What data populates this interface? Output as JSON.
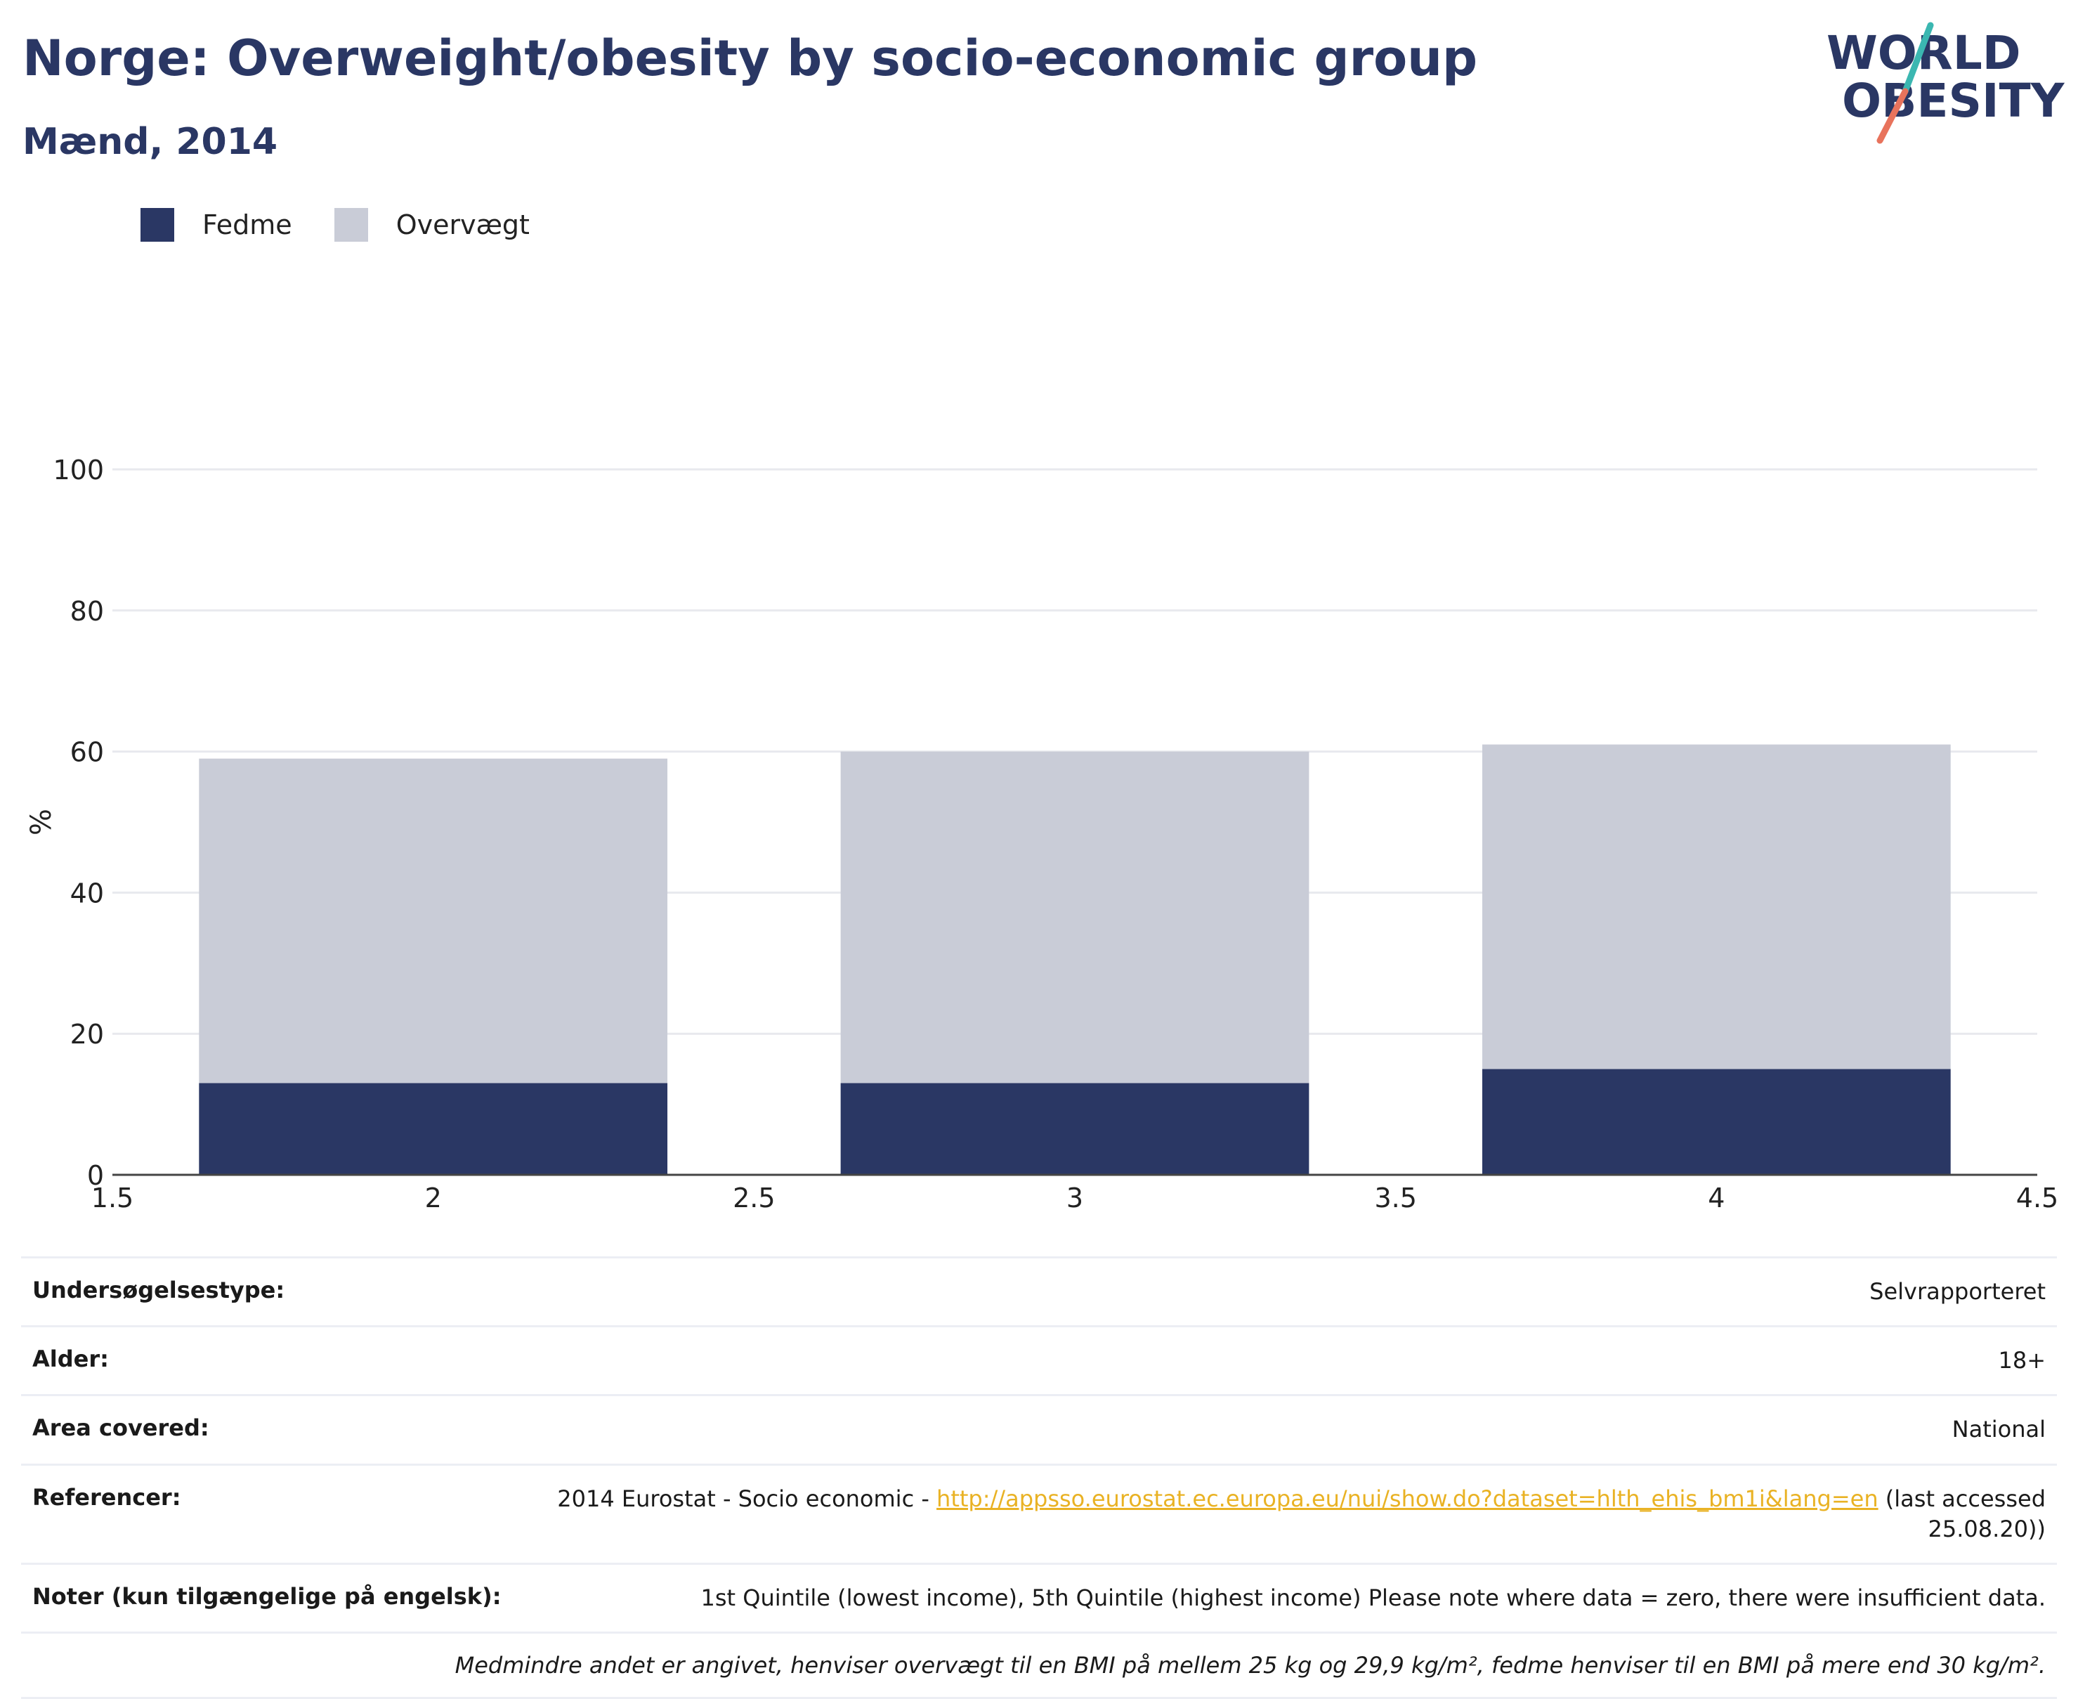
{
  "header": {
    "title": "Norge: Overweight/obesity by socio-economic group",
    "subtitle": "Mænd, 2014",
    "logo_line1": "WORLD",
    "logo_line2": "OBESITY"
  },
  "colors": {
    "obesity": "#2a3764",
    "overweight": "#c9ccd7",
    "title": "#2a3764",
    "link": "#e9b224",
    "logo_teal": "#3bb7b1",
    "logo_coral": "#e8735c"
  },
  "chart_data": {
    "type": "bar",
    "stacked": true,
    "x": [
      2,
      3,
      4
    ],
    "series": [
      {
        "name": "Fedme",
        "values": [
          13,
          13,
          15
        ]
      },
      {
        "name": "Overvægt",
        "values": [
          46,
          47,
          46
        ]
      }
    ],
    "totals": [
      59,
      60,
      61
    ],
    "ylabel": "%",
    "xlim": [
      1.5,
      4.5
    ],
    "ylim": [
      0,
      100
    ],
    "yticks": [
      "0",
      "20",
      "40",
      "60",
      "80",
      "100"
    ],
    "xticks": [
      "1.5",
      "2",
      "2.5",
      "3",
      "3.5",
      "4",
      "4.5"
    ],
    "legend": "top-left",
    "grid": true
  },
  "meta": {
    "rows": [
      {
        "label": "Undersøgelsestype:",
        "value": "Selvrapporteret"
      },
      {
        "label": "Alder:",
        "value": "18+"
      },
      {
        "label": "Area covered:",
        "value": "National"
      }
    ],
    "references_label": "Referencer:",
    "references_prefix": "2014 Eurostat - Socio economic - ",
    "references_link": "http://appsso.eurostat.ec.europa.eu/nui/show.do?dataset=hlth_ehis_bm1i&lang=en",
    "references_suffix": " (last accessed 25.08.20))",
    "notes_label": "Noter (kun tilgængelige på engelsk):",
    "notes_value": "1st Quintile (lowest income), 5th Quintile (highest income) Please note where data = zero, there were insufficient data.",
    "footnote": "Medmindre andet er angivet, henviser overvægt til en BMI på mellem 25 kg og 29,9 kg/m², fedme henviser til en BMI på mere end 30 kg/m²."
  }
}
